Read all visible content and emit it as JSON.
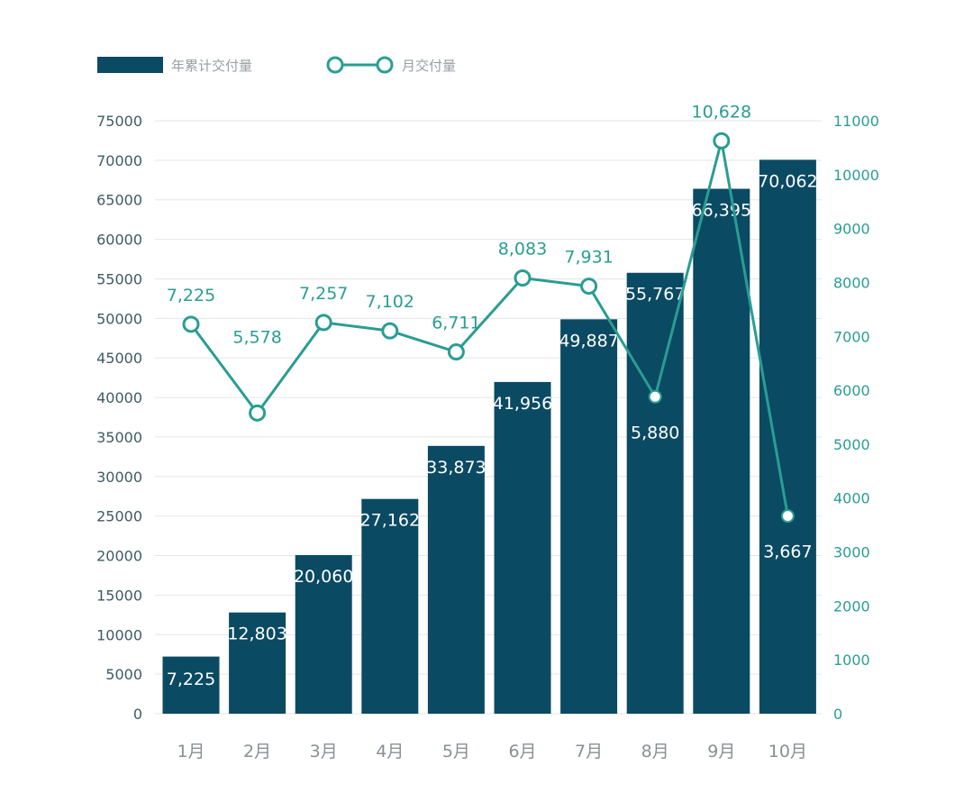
{
  "legend": {
    "bar_label": "年累计交付量",
    "line_label": "月交付量"
  },
  "colors": {
    "bar": "#0b4a63",
    "line": "#2a9d93",
    "left_axis_text": "#3e5b66",
    "right_axis_text": "#2a9d93",
    "line_label_text": "#2a9d93",
    "bar_label_text": "#ffffff",
    "grid": "#e3e6e8",
    "category_text": "#8a8f93",
    "legend_text": "#9a9ea2"
  },
  "chart_data": {
    "type": "bar+line",
    "title": "",
    "xlabel": "",
    "ylabel_left": "",
    "ylabel_right": "",
    "categories": [
      "1月",
      "2月",
      "3月",
      "4月",
      "5月",
      "6月",
      "7月",
      "8月",
      "9月",
      "10月"
    ],
    "series": [
      {
        "name": "年累计交付量",
        "type": "bar",
        "axis": "left",
        "values": [
          7225,
          12803,
          20060,
          27162,
          33873,
          41956,
          49887,
          55767,
          66395,
          70062
        ],
        "labels": [
          "7,225",
          "12,803",
          "20,060",
          "27,162",
          "33,873",
          "41,956",
          "49,887",
          "55,767",
          "66,395",
          "70,062"
        ]
      },
      {
        "name": "月交付量",
        "type": "line",
        "axis": "right",
        "values": [
          7225,
          5578,
          7257,
          7102,
          6711,
          8083,
          7931,
          5880,
          10628,
          3667
        ],
        "labels": [
          "7,225",
          "5,578",
          "7,257",
          "7,102",
          "6,711",
          "8,083",
          "7,931",
          "5,880",
          "10,628",
          "3,667"
        ]
      }
    ],
    "left_axis": {
      "range": [
        0,
        75000
      ],
      "ticks": [
        0,
        5000,
        10000,
        15000,
        20000,
        25000,
        30000,
        35000,
        40000,
        45000,
        50000,
        55000,
        60000,
        65000,
        70000,
        75000
      ]
    },
    "right_axis": {
      "range": [
        0,
        11000
      ],
      "ticks": [
        0,
        1000,
        2000,
        3000,
        4000,
        5000,
        6000,
        7000,
        8000,
        9000,
        10000,
        11000
      ]
    },
    "grid": true,
    "legend_position": "top-left"
  }
}
